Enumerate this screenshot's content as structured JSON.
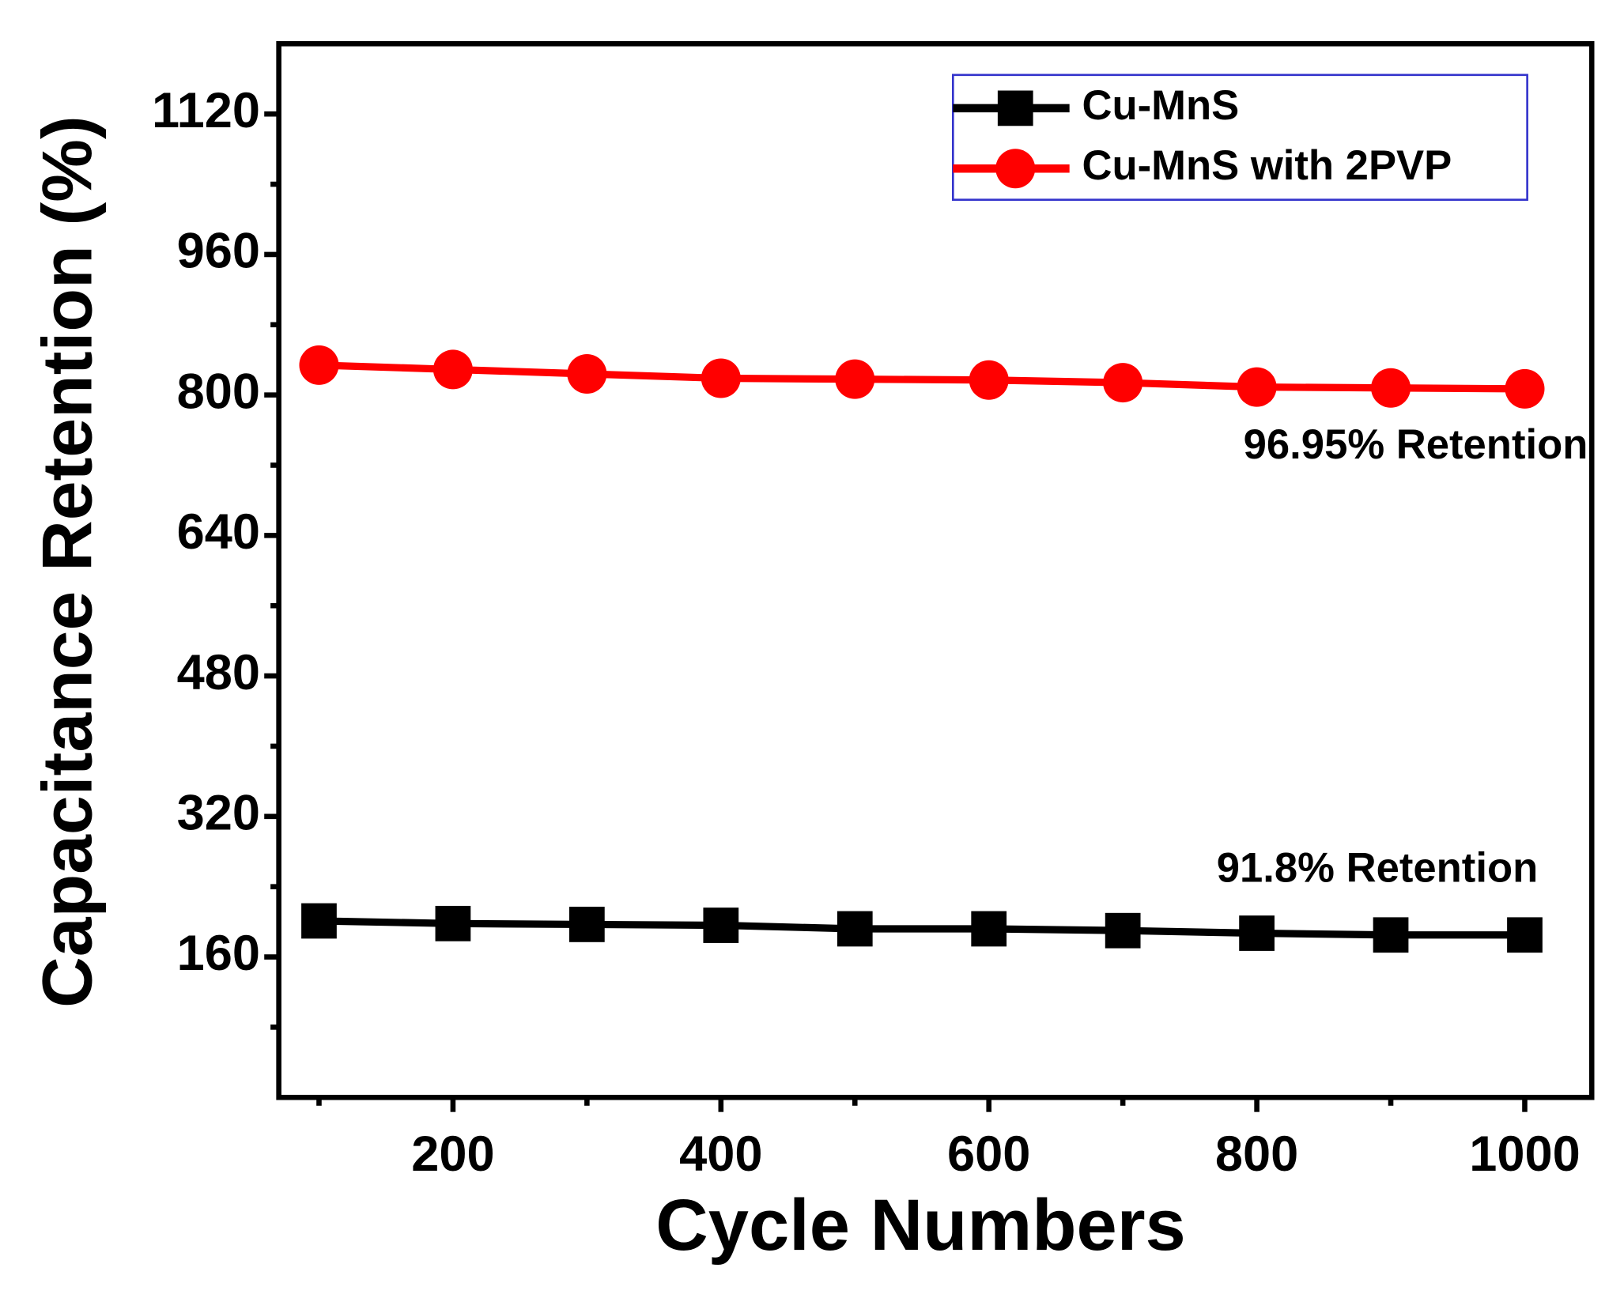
{
  "chart_data": {
    "type": "line",
    "x_label": "Cycle Numbers",
    "y_label": "Capacitance Retention (%)",
    "x": [
      100,
      200,
      300,
      400,
      500,
      600,
      700,
      800,
      900,
      1000
    ],
    "series": [
      {
        "name": "Cu-MnS",
        "color": "#000000",
        "marker": "square",
        "values": [
          201,
          198,
          197,
          196,
          192,
          192,
          190,
          187,
          185,
          185
        ]
      },
      {
        "name": "Cu-MnS with 2PVP",
        "color": "#ff0000",
        "marker": "circle",
        "values": [
          834,
          829,
          824,
          819,
          818,
          817,
          814,
          809,
          808,
          807
        ]
      }
    ],
    "annotations": [
      {
        "text": "96.95% Retention",
        "x": 790,
        "y": 740
      },
      {
        "text": "91.8% Retention",
        "x": 770,
        "y": 258
      }
    ],
    "xlim": [
      70,
      1050
    ],
    "ylim": [
      0,
      1200
    ],
    "xticks": [
      200,
      400,
      600,
      800,
      1000
    ],
    "yticks": [
      160,
      320,
      480,
      640,
      800,
      960,
      1120
    ],
    "x_minor_ticks": [
      100,
      300,
      500,
      700,
      900
    ],
    "y_minor_ticks": [
      80,
      240,
      400,
      560,
      720,
      880,
      1040
    ],
    "legend": "upper right",
    "legend_border_color": "#3333cc",
    "grid": false
  }
}
